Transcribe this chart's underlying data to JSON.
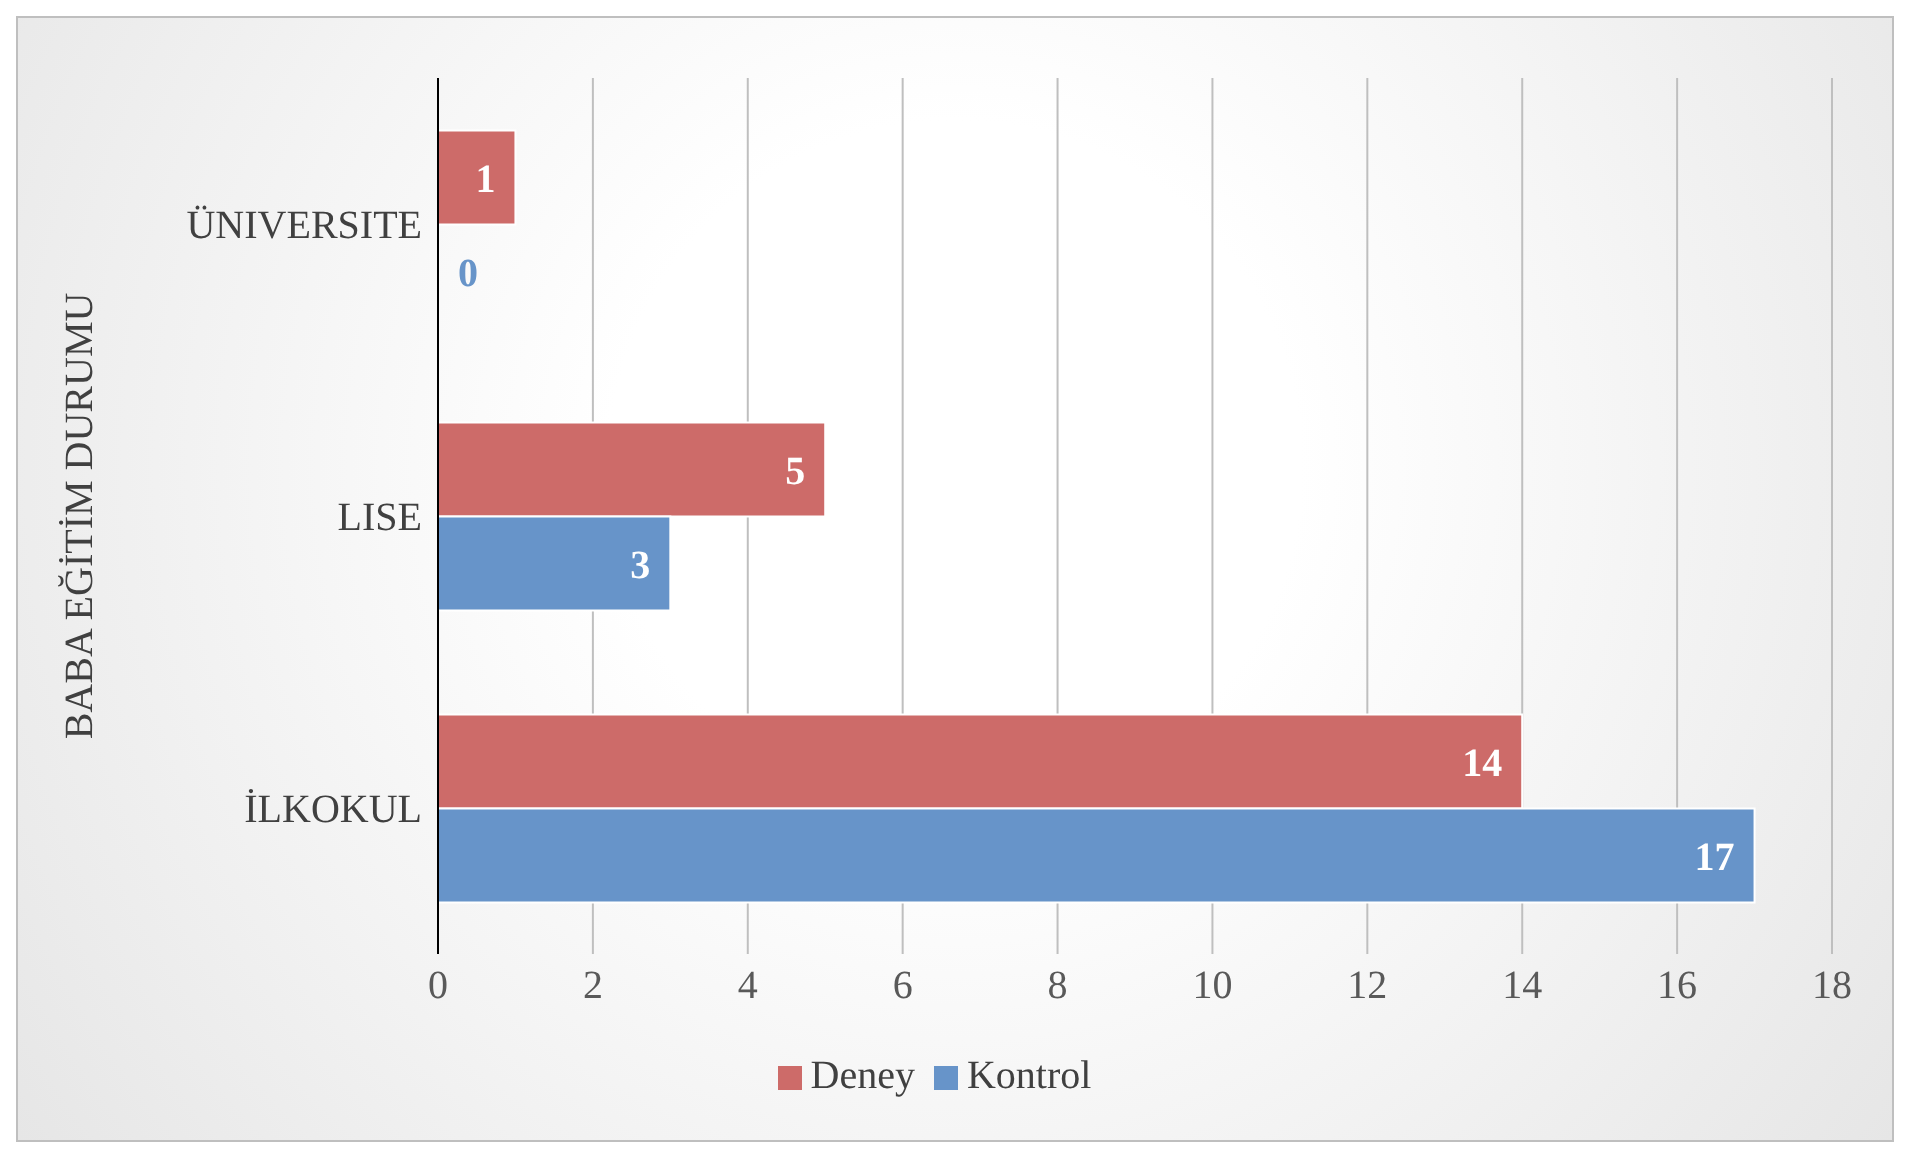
{
  "chart_data": {
    "type": "bar",
    "orientation": "horizontal",
    "ylabel": "BABA EĞİTİM DURUMU",
    "categories": [
      "ÜNIVERSITE",
      "LISE",
      "İLKOKUL"
    ],
    "series": [
      {
        "name": "Deney",
        "color": "#cd6b69",
        "values": [
          1,
          5,
          14
        ]
      },
      {
        "name": "Kontrol",
        "color": "#6794c9",
        "values": [
          0,
          3,
          17
        ]
      }
    ],
    "xlim": [
      0,
      18
    ],
    "xticks": [
      0,
      2,
      4,
      6,
      8,
      10,
      12,
      14,
      16,
      18
    ],
    "grid": "x",
    "legend": "bottom",
    "data_labels": true
  }
}
